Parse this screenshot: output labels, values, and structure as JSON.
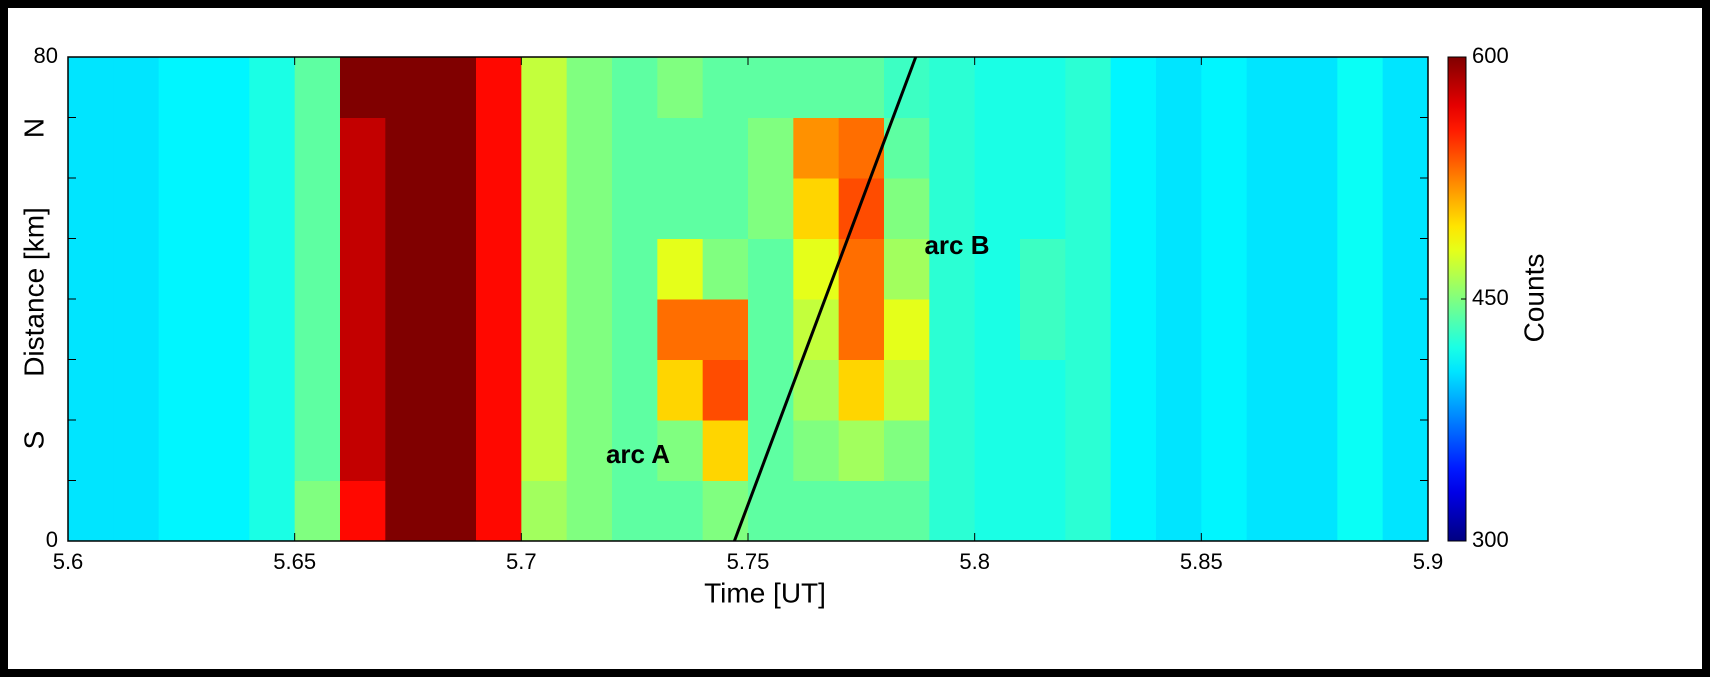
{
  "chart_data": {
    "type": "heatmap",
    "xlabel": "Time [UT]",
    "ylabel": "Distance [km]",
    "y_end_labels": [
      "S",
      "N"
    ],
    "colorbar_label": "Counts",
    "xlim": [
      5.6,
      5.9
    ],
    "xticks": [
      5.6,
      5.65,
      5.7,
      5.75,
      5.8,
      5.85,
      5.9
    ],
    "ylim": [
      0,
      80
    ],
    "yticks": [
      0,
      80
    ],
    "y_minor_ticks": [
      10,
      20,
      30,
      40,
      50,
      60,
      70
    ],
    "clim": [
      300,
      600
    ],
    "cticks": [
      300,
      450,
      600
    ],
    "colormap": "jet",
    "x_edges": [
      5.6,
      5.61,
      5.62,
      5.63,
      5.64,
      5.65,
      5.66,
      5.67,
      5.68,
      5.69,
      5.7,
      5.71,
      5.72,
      5.73,
      5.74,
      5.75,
      5.76,
      5.77,
      5.78,
      5.79,
      5.8,
      5.81,
      5.82,
      5.83,
      5.84,
      5.85,
      5.86,
      5.87,
      5.88,
      5.89,
      5.9
    ],
    "y_edges": [
      0,
      10,
      20,
      30,
      40,
      50,
      60,
      70,
      80
    ],
    "z": [
      [
        405,
        405,
        410,
        410,
        420,
        450,
        560,
        600,
        600,
        560,
        460,
        450,
        440,
        440,
        450,
        440,
        440,
        440,
        440,
        425,
        420,
        420,
        425,
        410,
        405,
        410,
        405,
        405,
        415,
        405
      ],
      [
        405,
        405,
        410,
        410,
        420,
        440,
        580,
        600,
        600,
        560,
        470,
        450,
        440,
        450,
        500,
        440,
        450,
        460,
        450,
        425,
        420,
        420,
        425,
        410,
        405,
        410,
        405,
        405,
        415,
        405
      ],
      [
        405,
        405,
        410,
        410,
        420,
        440,
        580,
        600,
        600,
        560,
        470,
        450,
        440,
        500,
        540,
        440,
        460,
        500,
        470,
        425,
        420,
        420,
        425,
        410,
        405,
        410,
        405,
        405,
        415,
        405
      ],
      [
        405,
        405,
        410,
        410,
        420,
        440,
        580,
        600,
        600,
        560,
        470,
        450,
        440,
        530,
        530,
        440,
        470,
        530,
        480,
        425,
        420,
        430,
        425,
        410,
        405,
        410,
        405,
        405,
        415,
        405
      ],
      [
        405,
        405,
        410,
        410,
        420,
        440,
        580,
        600,
        600,
        560,
        470,
        450,
        440,
        480,
        450,
        440,
        480,
        530,
        460,
        425,
        420,
        430,
        425,
        410,
        405,
        410,
        405,
        405,
        415,
        405
      ],
      [
        405,
        405,
        410,
        410,
        420,
        440,
        580,
        600,
        600,
        560,
        470,
        450,
        440,
        440,
        440,
        450,
        500,
        540,
        450,
        425,
        420,
        420,
        425,
        410,
        405,
        410,
        405,
        405,
        415,
        405
      ],
      [
        405,
        405,
        410,
        410,
        420,
        440,
        580,
        600,
        600,
        560,
        470,
        450,
        440,
        440,
        440,
        450,
        520,
        530,
        440,
        425,
        420,
        420,
        425,
        410,
        405,
        410,
        405,
        405,
        415,
        405
      ],
      [
        405,
        405,
        410,
        410,
        420,
        440,
        600,
        600,
        600,
        560,
        470,
        450,
        440,
        450,
        440,
        440,
        440,
        440,
        430,
        425,
        420,
        420,
        425,
        410,
        405,
        410,
        405,
        405,
        415,
        405
      ]
    ],
    "reference_line": {
      "x": [
        5.747,
        5.787
      ],
      "y": [
        0,
        80
      ],
      "color": "#000000"
    },
    "annotations": [
      "arc A",
      "arc B"
    ]
  }
}
